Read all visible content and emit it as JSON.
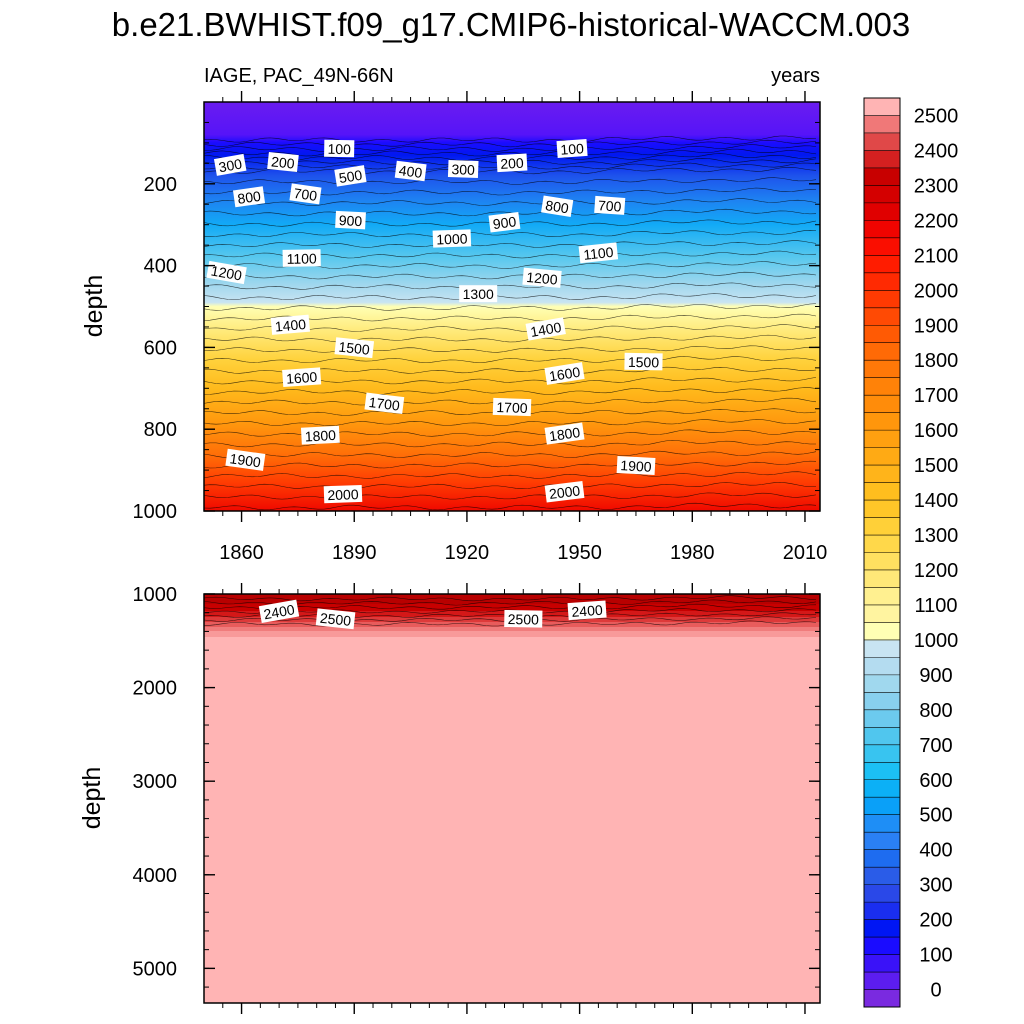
{
  "chart_data": {
    "type": "heatmap",
    "subtype": "filled-contour (depth vs time)",
    "title": "b.e21.BWHIST.f09_g17.CMIP6-historical-WACCM.003",
    "variable_label": "IAGE, PAC_49N-66N",
    "units_label": "years",
    "ylabel": "depth",
    "x": {
      "range": [
        1850,
        2014
      ],
      "ticks": [
        1860,
        1890,
        1920,
        1950,
        1980,
        2010
      ],
      "tick_labels": [
        "1860",
        "1890",
        "1920",
        "1950",
        "1980",
        "2010"
      ]
    },
    "upper_panel": {
      "ylim": [
        0,
        1000
      ],
      "y_inverted": true,
      "y_ticks": [
        200,
        400,
        600,
        800,
        1000
      ],
      "y_tick_labels": [
        "200",
        "400",
        "600",
        "800",
        "1000"
      ],
      "contour_labels": [
        {
          "text": "300",
          "x": 1857,
          "y": 155
        },
        {
          "text": "200",
          "x": 1871,
          "y": 148
        },
        {
          "text": "100",
          "x": 1886,
          "y": 115
        },
        {
          "text": "100",
          "x": 1948,
          "y": 115
        },
        {
          "text": "500",
          "x": 1889,
          "y": 182
        },
        {
          "text": "400",
          "x": 1905,
          "y": 170
        },
        {
          "text": "300",
          "x": 1919,
          "y": 165
        },
        {
          "text": "200",
          "x": 1932,
          "y": 150
        },
        {
          "text": "800",
          "x": 1862,
          "y": 233
        },
        {
          "text": "700",
          "x": 1877,
          "y": 226
        },
        {
          "text": "900",
          "x": 1889,
          "y": 290
        },
        {
          "text": "1000",
          "x": 1916,
          "y": 335
        },
        {
          "text": "900",
          "x": 1930,
          "y": 295
        },
        {
          "text": "800",
          "x": 1944,
          "y": 256
        },
        {
          "text": "700",
          "x": 1958,
          "y": 254
        },
        {
          "text": "1100",
          "x": 1876,
          "y": 383
        },
        {
          "text": "1100",
          "x": 1955,
          "y": 370
        },
        {
          "text": "1200",
          "x": 1856,
          "y": 418
        },
        {
          "text": "1200",
          "x": 1940,
          "y": 431
        },
        {
          "text": "1300",
          "x": 1923,
          "y": 470
        },
        {
          "text": "1400",
          "x": 1873,
          "y": 546
        },
        {
          "text": "1400",
          "x": 1941,
          "y": 556
        },
        {
          "text": "1500",
          "x": 1890,
          "y": 602
        },
        {
          "text": "1500",
          "x": 1967,
          "y": 636
        },
        {
          "text": "1600",
          "x": 1876,
          "y": 674
        },
        {
          "text": "1600",
          "x": 1946,
          "y": 665
        },
        {
          "text": "1700",
          "x": 1898,
          "y": 738
        },
        {
          "text": "1700",
          "x": 1932,
          "y": 747
        },
        {
          "text": "1800",
          "x": 1881,
          "y": 816
        },
        {
          "text": "1800",
          "x": 1946,
          "y": 812
        },
        {
          "text": "1900",
          "x": 1861,
          "y": 876
        },
        {
          "text": "1900",
          "x": 1965,
          "y": 890
        },
        {
          "text": "2000",
          "x": 1887,
          "y": 960
        },
        {
          "text": "2000",
          "x": 1946,
          "y": 954
        }
      ]
    },
    "lower_panel": {
      "ylim": [
        1000,
        5370
      ],
      "y_inverted": true,
      "y_ticks": [
        1000,
        2000,
        3000,
        4000,
        5000
      ],
      "y_tick_labels": [
        "1000",
        "2000",
        "3000",
        "4000",
        "5000"
      ],
      "contour_labels": [
        {
          "text": "2400",
          "x": 1870,
          "y": 1190
        },
        {
          "text": "2500",
          "x": 1885,
          "y": 1270
        },
        {
          "text": "2500",
          "x": 1935,
          "y": 1270
        },
        {
          "text": "2400",
          "x": 1952,
          "y": 1180
        }
      ]
    },
    "colorbar": {
      "levels": [
        0,
        100,
        200,
        300,
        400,
        500,
        600,
        700,
        800,
        900,
        1000,
        1100,
        1200,
        1300,
        1400,
        1500,
        1600,
        1700,
        1800,
        1900,
        2000,
        2100,
        2200,
        2300,
        2400,
        2500
      ],
      "labels": [
        "0",
        "100",
        "200",
        "300",
        "400",
        "500",
        "600",
        "700",
        "800",
        "900",
        "1000",
        "1100",
        "1200",
        "1300",
        "1400",
        "1500",
        "1600",
        "1700",
        "1800",
        "1900",
        "2000",
        "2100",
        "2200",
        "2300",
        "2400",
        "2500"
      ],
      "band_colors": [
        "#7a2ae0",
        "#5c1df0",
        "#3a12f8",
        "#1a0cff",
        "#0016f4",
        "#1a2ef0",
        "#2a48e8",
        "#2a5ce8",
        "#1e6cf0",
        "#2a80f4",
        "#1e8ef6",
        "#0aa0f8",
        "#0cb0f6",
        "#1cc0f4",
        "#38c4f0",
        "#50c6ee",
        "#6ccaee",
        "#88d0ee",
        "#a0d8ee",
        "#b4dcf0",
        "#c8e4f2",
        "#ffffb4",
        "#fff4a0",
        "#fff090",
        "#ffe878",
        "#ffe060",
        "#ffd84a",
        "#ffd038",
        "#ffc628",
        "#ffbe1e",
        "#ffb41a",
        "#ffaa14",
        "#ffa010",
        "#ff960c",
        "#ff8c0a",
        "#ff8208",
        "#ff7808",
        "#ff6a06",
        "#ff5a04",
        "#ff4a04",
        "#ff3a02",
        "#ff2a02",
        "#ff1c00",
        "#fa0e00",
        "#f00400",
        "#e00000",
        "#d40000",
        "#c80000",
        "#d42020",
        "#e04848",
        "#f07878",
        "#ffb4b4"
      ]
    }
  }
}
